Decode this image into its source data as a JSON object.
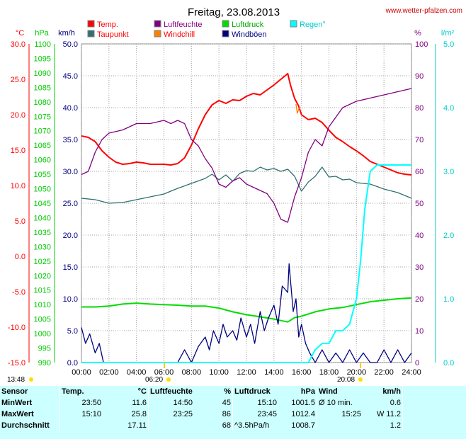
{
  "header": {
    "title": "Freitag, 23.08.2013",
    "site": "www.wetter-pfalzen.com"
  },
  "axes": {
    "left_units": [
      "°C",
      "hPa",
      "km/h"
    ],
    "right_units": [
      "%",
      "l/m²"
    ]
  },
  "legend": [
    {
      "label": "Temp.",
      "color": "#ff0000"
    },
    {
      "label": "Taupunkt",
      "color": "#2f7070"
    },
    {
      "label": "Luftfeuchte",
      "color": "#800080"
    },
    {
      "label": "Windchill",
      "color": "#ff8000"
    },
    {
      "label": "Luftdruck",
      "color": "#00dd00"
    },
    {
      "label": "Windböen",
      "color": "#000080"
    },
    {
      "label": "Regen°",
      "color": "#00ffff"
    }
  ],
  "sun": {
    "sunrise_marker": "06:20",
    "sunset_marker": "20:08",
    "daylength": "13:48"
  },
  "chart_data": {
    "type": "line",
    "x_ticks": [
      "00:00",
      "02:00",
      "04:00",
      "06:00",
      "08:00",
      "10:00",
      "12:00",
      "14:00",
      "16:00",
      "18:00",
      "20:00",
      "22:00",
      "24:00"
    ],
    "temp_ticks": [
      "30.0",
      "25.0",
      "20.0",
      "15.0",
      "10.0",
      "5.0",
      "0.0",
      "-5.0",
      "-10.0",
      "-15.0"
    ],
    "hpa_ticks": [
      "1100",
      "1095",
      "1090",
      "1085",
      "1080",
      "1075",
      "1070",
      "1065",
      "1060",
      "1055",
      "1050",
      "1045",
      "1040",
      "1035",
      "1030",
      "1025",
      "1020",
      "1015",
      "1010",
      "1005",
      "1000",
      "995",
      "990"
    ],
    "kmh_ticks": [
      "50.0",
      "45.0",
      "40.0",
      "35.0",
      "30.0",
      "25.0",
      "20.0",
      "15.0",
      "10.0",
      "5.0",
      "0.0"
    ],
    "pct_ticks": [
      "100",
      "90",
      "80",
      "70",
      "60",
      "50",
      "40",
      "30",
      "20",
      "10",
      "0"
    ],
    "rain_ticks": [
      "5.0",
      "4.0",
      "3.0",
      "2.0",
      "1.0",
      "0.0"
    ],
    "ylim_temp": [
      -15,
      30
    ],
    "ylim_hpa": [
      990,
      1100
    ],
    "ylim_kmh": [
      0,
      50
    ],
    "ylim_pct": [
      0,
      100
    ],
    "ylim_rain": [
      0,
      5
    ],
    "xlim_hours": [
      0,
      24
    ],
    "grid": true,
    "series": [
      {
        "name": "Temp.",
        "color": "#ff0000",
        "axis": "temp",
        "x": [
          0,
          0.5,
          1,
          1.5,
          2,
          2.5,
          3,
          3.5,
          4,
          4.5,
          5,
          5.5,
          6,
          6.5,
          7,
          7.5,
          8,
          8.5,
          9,
          9.5,
          10,
          10.5,
          11,
          11.5,
          12,
          12.5,
          13,
          13.5,
          14,
          14.5,
          15,
          15.2,
          15.5,
          15.8,
          16,
          16.5,
          17,
          17.5,
          18,
          18.5,
          19,
          19.5,
          20,
          20.5,
          21,
          21.5,
          22,
          22.5,
          23,
          23.5,
          24
        ],
        "y": [
          17.0,
          16.8,
          16.2,
          14.9,
          14.0,
          13.3,
          13.0,
          13.1,
          13.3,
          13.2,
          13.0,
          13.0,
          13.0,
          12.9,
          13.1,
          13.9,
          15.7,
          18.0,
          20.0,
          21.4,
          22.0,
          21.6,
          22.1,
          22.0,
          22.6,
          23.0,
          22.8,
          23.5,
          24.2,
          25.0,
          25.8,
          24.2,
          22.3,
          21.2,
          20.0,
          19.3,
          19.5,
          18.9,
          17.8,
          16.8,
          16.2,
          15.5,
          14.9,
          14.2,
          13.4,
          13.0,
          12.6,
          12.2,
          11.8,
          11.6,
          11.5
        ]
      },
      {
        "name": "Taupunkt",
        "color": "#2f7070",
        "axis": "temp",
        "x": [
          0,
          1,
          2,
          3,
          4,
          5,
          6,
          7,
          8,
          9,
          9.5,
          10,
          10.5,
          11,
          11.5,
          12,
          12.5,
          13,
          13.5,
          14,
          14.5,
          15,
          15.5,
          16,
          16.5,
          17,
          17.5,
          18,
          18.5,
          19,
          19.5,
          20,
          21,
          22,
          23,
          24
        ],
        "y": [
          8.2,
          8.0,
          7.5,
          7.6,
          8.0,
          8.4,
          8.8,
          9.6,
          10.3,
          11.0,
          11.6,
          10.8,
          11.5,
          10.6,
          11.7,
          12.1,
          12.0,
          12.6,
          12.2,
          12.4,
          12.0,
          12.3,
          11.3,
          9.2,
          10.5,
          11.3,
          12.6,
          11.2,
          11.3,
          10.8,
          10.9,
          10.4,
          10.2,
          9.5,
          9.0,
          8.2
        ]
      },
      {
        "name": "Luftfeuchte",
        "color": "#800080",
        "axis": "pct",
        "x": [
          0,
          0.5,
          1,
          1.5,
          2,
          3,
          4,
          5,
          6,
          6.5,
          7,
          7.5,
          8,
          8.5,
          9,
          9.5,
          10,
          10.5,
          11,
          11.5,
          12,
          12.5,
          13,
          13.5,
          14,
          14.5,
          15,
          15.5,
          16,
          16.5,
          17,
          17.5,
          18,
          18.5,
          19,
          20,
          21,
          22,
          23,
          24
        ],
        "y": [
          59,
          60,
          66,
          70,
          72,
          73,
          75,
          75,
          76,
          75,
          76,
          75,
          70,
          68,
          64,
          61,
          56,
          55,
          57,
          58,
          56,
          55,
          54,
          53,
          50,
          45,
          44,
          52,
          58,
          66,
          70,
          68,
          74,
          77,
          80,
          82,
          83,
          84,
          85,
          86
        ]
      },
      {
        "name": "Windchill",
        "color": "#ff8000",
        "axis": "temp",
        "x": [
          15.6,
          15.7,
          15.8,
          15.9
        ],
        "y": [
          21.5,
          20.2,
          20.8,
          21.0
        ]
      },
      {
        "name": "Luftdruck",
        "color": "#00dd00",
        "axis": "hpa",
        "x": [
          0,
          1,
          2,
          3,
          4,
          5,
          6,
          7,
          8,
          9,
          10,
          11,
          12,
          13,
          14,
          14.5,
          15,
          15.5,
          16,
          17,
          18,
          19,
          20,
          21,
          22,
          23,
          24
        ],
        "y": [
          1009.2,
          1009.2,
          1009.5,
          1010.2,
          1010.5,
          1010.2,
          1010.0,
          1009.8,
          1009.5,
          1009.5,
          1008.8,
          1007.5,
          1006.5,
          1005.8,
          1005.0,
          1004.5,
          1004.0,
          1005.5,
          1006.0,
          1007.5,
          1008.5,
          1009.0,
          1010.0,
          1011.0,
          1011.5,
          1012.0,
          1012.3
        ]
      },
      {
        "name": "Windböen",
        "color": "#000080",
        "axis": "kmh",
        "x": [
          0,
          0.3,
          0.6,
          1,
          1.3,
          1.6,
          2,
          3,
          4,
          5,
          6,
          7,
          7.5,
          8,
          8.5,
          9,
          9.3,
          9.6,
          10,
          10.3,
          10.6,
          11,
          11.3,
          11.6,
          12,
          12.3,
          12.6,
          13,
          13.3,
          13.6,
          14,
          14.3,
          14.6,
          15,
          15.1,
          15.2,
          15.4,
          15.6,
          15.8,
          16,
          16.3,
          16.6,
          17,
          17.5,
          18,
          18.5,
          19,
          19.5,
          20,
          20.5,
          21,
          21.5,
          22,
          22.5,
          23,
          23.5,
          24
        ],
        "y": [
          5.5,
          3.0,
          4.5,
          1.5,
          3.0,
          0,
          0,
          0,
          0,
          0,
          0,
          0,
          2.0,
          0,
          2.5,
          4.0,
          2.0,
          5.0,
          3.0,
          6.0,
          4.0,
          5.0,
          3.5,
          7.0,
          4.0,
          6.0,
          3.0,
          8.0,
          5.0,
          7.0,
          9.0,
          6.0,
          12.0,
          11.0,
          15.5,
          13.0,
          8.0,
          10.0,
          4.0,
          6.0,
          3.0,
          1.5,
          0,
          2.0,
          0,
          1.5,
          0,
          2.0,
          0,
          1.5,
          0,
          0,
          2.0,
          0,
          2.0,
          0,
          1.5
        ]
      },
      {
        "name": "Regen°",
        "color": "#00ffff",
        "axis": "rain",
        "x": [
          0,
          16.5,
          17,
          17.5,
          18,
          18.5,
          19,
          19.5,
          20,
          20.3,
          20.6,
          21,
          21.5,
          22,
          23,
          24
        ],
        "y": [
          0,
          0,
          0.2,
          0.3,
          0.3,
          0.5,
          0.5,
          0.6,
          1.0,
          1.6,
          2.4,
          3.0,
          3.1,
          3.1,
          3.1,
          3.1
        ]
      }
    ]
  },
  "stats": {
    "headers": {
      "sensor": "Sensor",
      "temp": "Temp.",
      "temp_unit": "°C",
      "hum": "Luftfeuchte",
      "hum_unit": "%",
      "press": "Luftdruck",
      "press_unit": "hPa",
      "wind": "Wind",
      "wind_unit": "km/h"
    },
    "rows": [
      {
        "label": "MinWert",
        "t_time": "23:50",
        "t_val": "11.6",
        "h_time": "14:50",
        "h_val": "45",
        "p_time": "15:10",
        "p_val": "1001.5",
        "w_time": "Ø 10 min.",
        "w_val": "0.6"
      },
      {
        "label": "MaxWert",
        "t_time": "15:10",
        "t_val": "25.8",
        "h_time": "23:25",
        "h_val": "86",
        "p_time": "23:45",
        "p_val": "1012.4",
        "w_time": "15:25",
        "w_val": "W 11.2"
      },
      {
        "label": "Durchschnitt",
        "t_time": "",
        "t_val": "17.11",
        "h_time": "",
        "h_val": "68",
        "p_time": "^3.5hPa/h",
        "p_val": "1008.7",
        "w_time": "",
        "w_val": "1.2"
      }
    ]
  }
}
